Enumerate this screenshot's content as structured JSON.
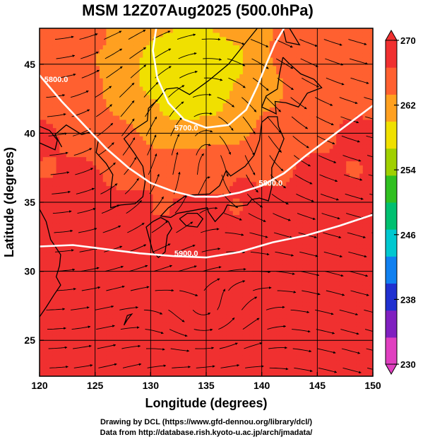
{
  "figure": {
    "title": "MSM 12Z07Aug2025 (500.0hPa)",
    "credit_line1": "Drawing by DCL (https://www.gfd-dennou.org/library/dcl/)",
    "credit_line2": "Data from http://database.rish.kyoto-u.ac.jp/arch/jmadata/"
  },
  "chart_data": {
    "type": "heatmap",
    "title": "MSM 12Z07Aug2025 (500.0hPa)",
    "xlabel": "Longitude (degrees)",
    "ylabel": "Latitude  (degrees)",
    "xlim": [
      120,
      150
    ],
    "ylim": [
      22.4,
      47.6
    ],
    "x_ticks": [
      "120",
      "125",
      "130",
      "135",
      "140",
      "145",
      "150"
    ],
    "y_ticks": [
      "25",
      "30",
      "35",
      "40",
      "45"
    ],
    "x_tick_values": [
      120,
      125,
      130,
      135,
      140,
      145,
      150
    ],
    "y_tick_values": [
      25,
      30,
      35,
      40,
      45
    ],
    "grid": true,
    "colorbar": {
      "min": 230,
      "max": 270,
      "tick_labels": [
        "270",
        "262",
        "254",
        "246",
        "238",
        "230"
      ],
      "tick_values": [
        270,
        262,
        254,
        246,
        238,
        230
      ],
      "colors": [
        "#e040c0",
        "#8020c0",
        "#2030d0",
        "#1080f0",
        "#00c8d0",
        "#00c070",
        "#30c020",
        "#a0d000",
        "#f0e000",
        "#ffa020",
        "#ff6030",
        "#f03030"
      ]
    },
    "contours": [
      {
        "label": "5900.0",
        "label_lon": 133.2,
        "label_lat": 31.1,
        "points": [
          [
            120,
            31.8
          ],
          [
            123,
            31.9
          ],
          [
            126,
            31.6
          ],
          [
            129,
            31.3
          ],
          [
            132,
            31.1
          ],
          [
            135,
            31.0
          ],
          [
            138,
            31.4
          ],
          [
            141,
            32.1
          ],
          [
            144,
            32.6
          ],
          [
            147,
            33.3
          ],
          [
            150,
            34.1
          ]
        ]
      },
      {
        "label": "5800.0",
        "label_lon": 140.8,
        "label_lat": 36.2,
        "points": [
          [
            120,
            44.2
          ],
          [
            122,
            42.3
          ],
          [
            124,
            40.6
          ],
          [
            126,
            38.9
          ],
          [
            128,
            37.5
          ],
          [
            130,
            36.4
          ],
          [
            132,
            35.8
          ],
          [
            134,
            35.4
          ],
          [
            136,
            35.4
          ],
          [
            138,
            35.7
          ],
          [
            140,
            36.2
          ],
          [
            142,
            37.1
          ],
          [
            144,
            38.4
          ],
          [
            146,
            39.6
          ],
          [
            148,
            40.8
          ],
          [
            150,
            42.0
          ]
        ]
      },
      {
        "label": "5800.0",
        "label_lon": 121.5,
        "label_lat": 43.7,
        "points": []
      },
      {
        "label": "5700.0",
        "label_lon": 133.2,
        "label_lat": 40.2,
        "points": [
          [
            130.5,
            47.6
          ],
          [
            130.2,
            46.0
          ],
          [
            130.6,
            44.0
          ],
          [
            131.6,
            42.2
          ],
          [
            133.0,
            41.0
          ],
          [
            135.0,
            40.4
          ],
          [
            137.0,
            40.6
          ],
          [
            138.6,
            41.7
          ],
          [
            139.6,
            43.4
          ],
          [
            140.4,
            45.0
          ],
          [
            141.2,
            46.5
          ],
          [
            142.0,
            47.6
          ]
        ]
      }
    ],
    "circulation_centers": [
      {
        "type": "anticyclone",
        "lon": 135.0,
        "lat": 26.2
      },
      {
        "type": "cyclone",
        "lon": 134.5,
        "lat": 41.5
      }
    ]
  }
}
